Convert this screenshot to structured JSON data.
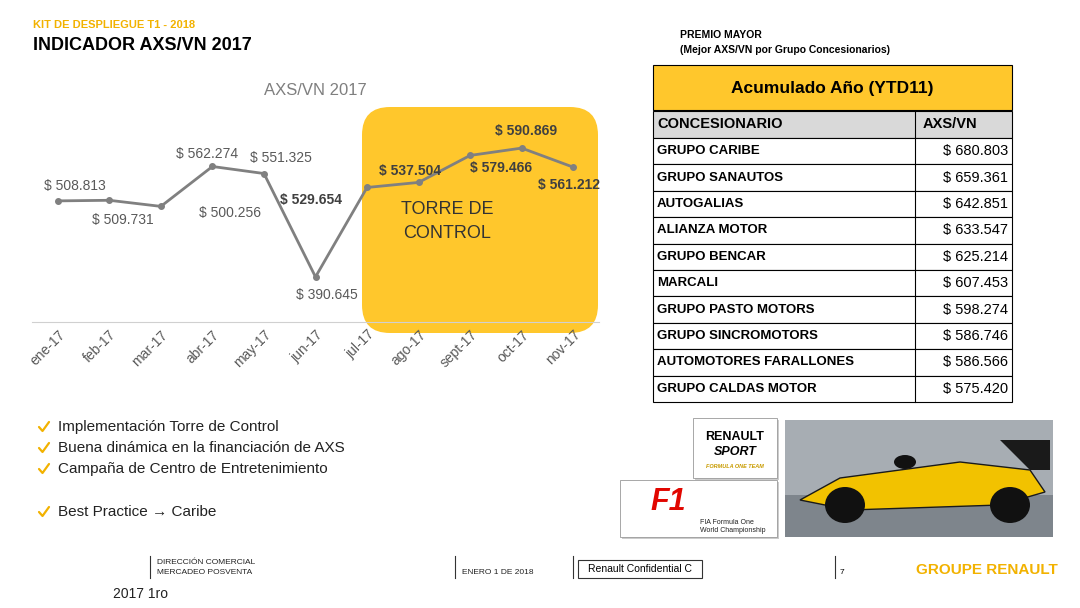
{
  "header": {
    "kicker": "KIT DE DESPLIEGUE T1 - 2018",
    "title": "INDICADOR AXS/VN 2017"
  },
  "chart_data": {
    "type": "line",
    "title": "AXS/VN 2017",
    "categories": [
      "ene-17",
      "feb-17",
      "mar-17",
      "abr-17",
      "may-17",
      "jun-17",
      "jul-17",
      "ago-17",
      "sept-17",
      "oct-17",
      "nov-17"
    ],
    "values": [
      508813,
      509731,
      500256,
      562274,
      551325,
      390645,
      529654,
      537504,
      579466,
      590869,
      561212
    ],
    "value_labels": [
      "$ 508.813",
      "$ 509.731",
      "$ 500.256",
      "$ 562.274",
      "$ 551.325",
      "$ 390.645",
      "$ 529.654",
      "$ 537.504",
      "$ 579.466",
      "$ 590.869",
      "$ 561.212"
    ],
    "data_labels": true,
    "tick_labels": "x",
    "color": "#808080",
    "marker": "circle",
    "line_style": "solid",
    "annotation_lines": [
      "TORRE DE",
      "CONTROL"
    ]
  },
  "table": {
    "title_lines": [
      "PREMIO MAYOR",
      "(Mejor AXS/VN por Grupo Concesionarios)"
    ],
    "caption": "Acumulado Año (YTD11)",
    "columns": [
      "CONCESIONARIO",
      "AXS/VN"
    ],
    "rows": [
      [
        "GRUPO CARIBE",
        "$ 680.803"
      ],
      [
        "GRUPO SANAUTOS",
        "$ 659.361"
      ],
      [
        "AUTOGALIAS",
        "$ 642.851"
      ],
      [
        "ALIANZA MOTOR",
        "$ 633.547"
      ],
      [
        "GRUPO BENCAR",
        "$ 625.214"
      ],
      [
        "MARCALI",
        "$ 607.453"
      ],
      [
        "GRUPO PASTO MOTORS",
        "$ 598.274"
      ],
      [
        "GRUPO SINCROMOTORS",
        "$ 586.746"
      ],
      [
        "AUTOMOTORES FARALLONES",
        "$ 586.566"
      ],
      [
        "GRUPO CALDAS MOTOR",
        "$ 575.420"
      ]
    ]
  },
  "bullets": [
    "Implementación Torre de Control",
    "Buena dinámica en la financiación de AXS",
    "Campaña de Centro de Entretenimiento",
    "Best Practice → Caribe"
  ],
  "logos": {
    "renault_sport": [
      "RENAULT",
      "SPORT",
      "FORMULA ONE TEAM"
    ],
    "f1": [
      "F1",
      "FIA Formula One",
      "World Championship"
    ]
  },
  "footer": {
    "department_lines": [
      "DIRECCIÓN COMERCIAL",
      "MERCADEO POSVENTA"
    ],
    "date": "ENERO 1 DE 2018",
    "confidentiality": "Renault Confidential C",
    "page": 7,
    "brand": "GROUPE RENAULT",
    "note": "2017 1ro"
  }
}
